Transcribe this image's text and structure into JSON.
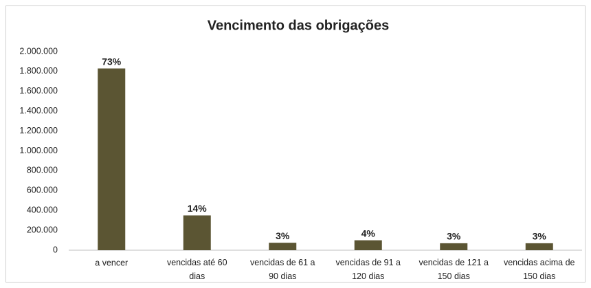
{
  "chart_data": {
    "type": "bar",
    "title": "Vencimento das obrigações",
    "categories": [
      "a vencer",
      "vencidas até 60 dias",
      "vencidas de 61 a 90 dias",
      "vencidas de 91 a 120 dias",
      "vencidas de 121 a 150 dias",
      "vencidas acima de 150 dias"
    ],
    "values": [
      1830000,
      350000,
      75000,
      100000,
      70000,
      70000
    ],
    "data_labels": [
      "73%",
      "14%",
      "3%",
      "4%",
      "3%",
      "3%"
    ],
    "color": "#5b5533",
    "ylim": [
      0,
      2000000
    ],
    "yticks": [
      0,
      {
        "value": 200000,
        "label": "200.000"
      },
      {
        "value": 400000,
        "label": "400.000"
      },
      {
        "value": 600000,
        "label": "600.000"
      },
      {
        "value": 800000,
        "label": "800.000"
      },
      {
        "value": 1000000,
        "label": "1.000.000"
      },
      {
        "value": 1200000,
        "label": "1.200.000"
      },
      {
        "value": 1400000,
        "label": "1.400.000"
      },
      {
        "value": 1600000,
        "label": "1.600.000"
      },
      {
        "value": 1800000,
        "label": "1.800.000"
      },
      {
        "value": 2000000,
        "label": "2.000.000"
      }
    ],
    "grid": false
  }
}
